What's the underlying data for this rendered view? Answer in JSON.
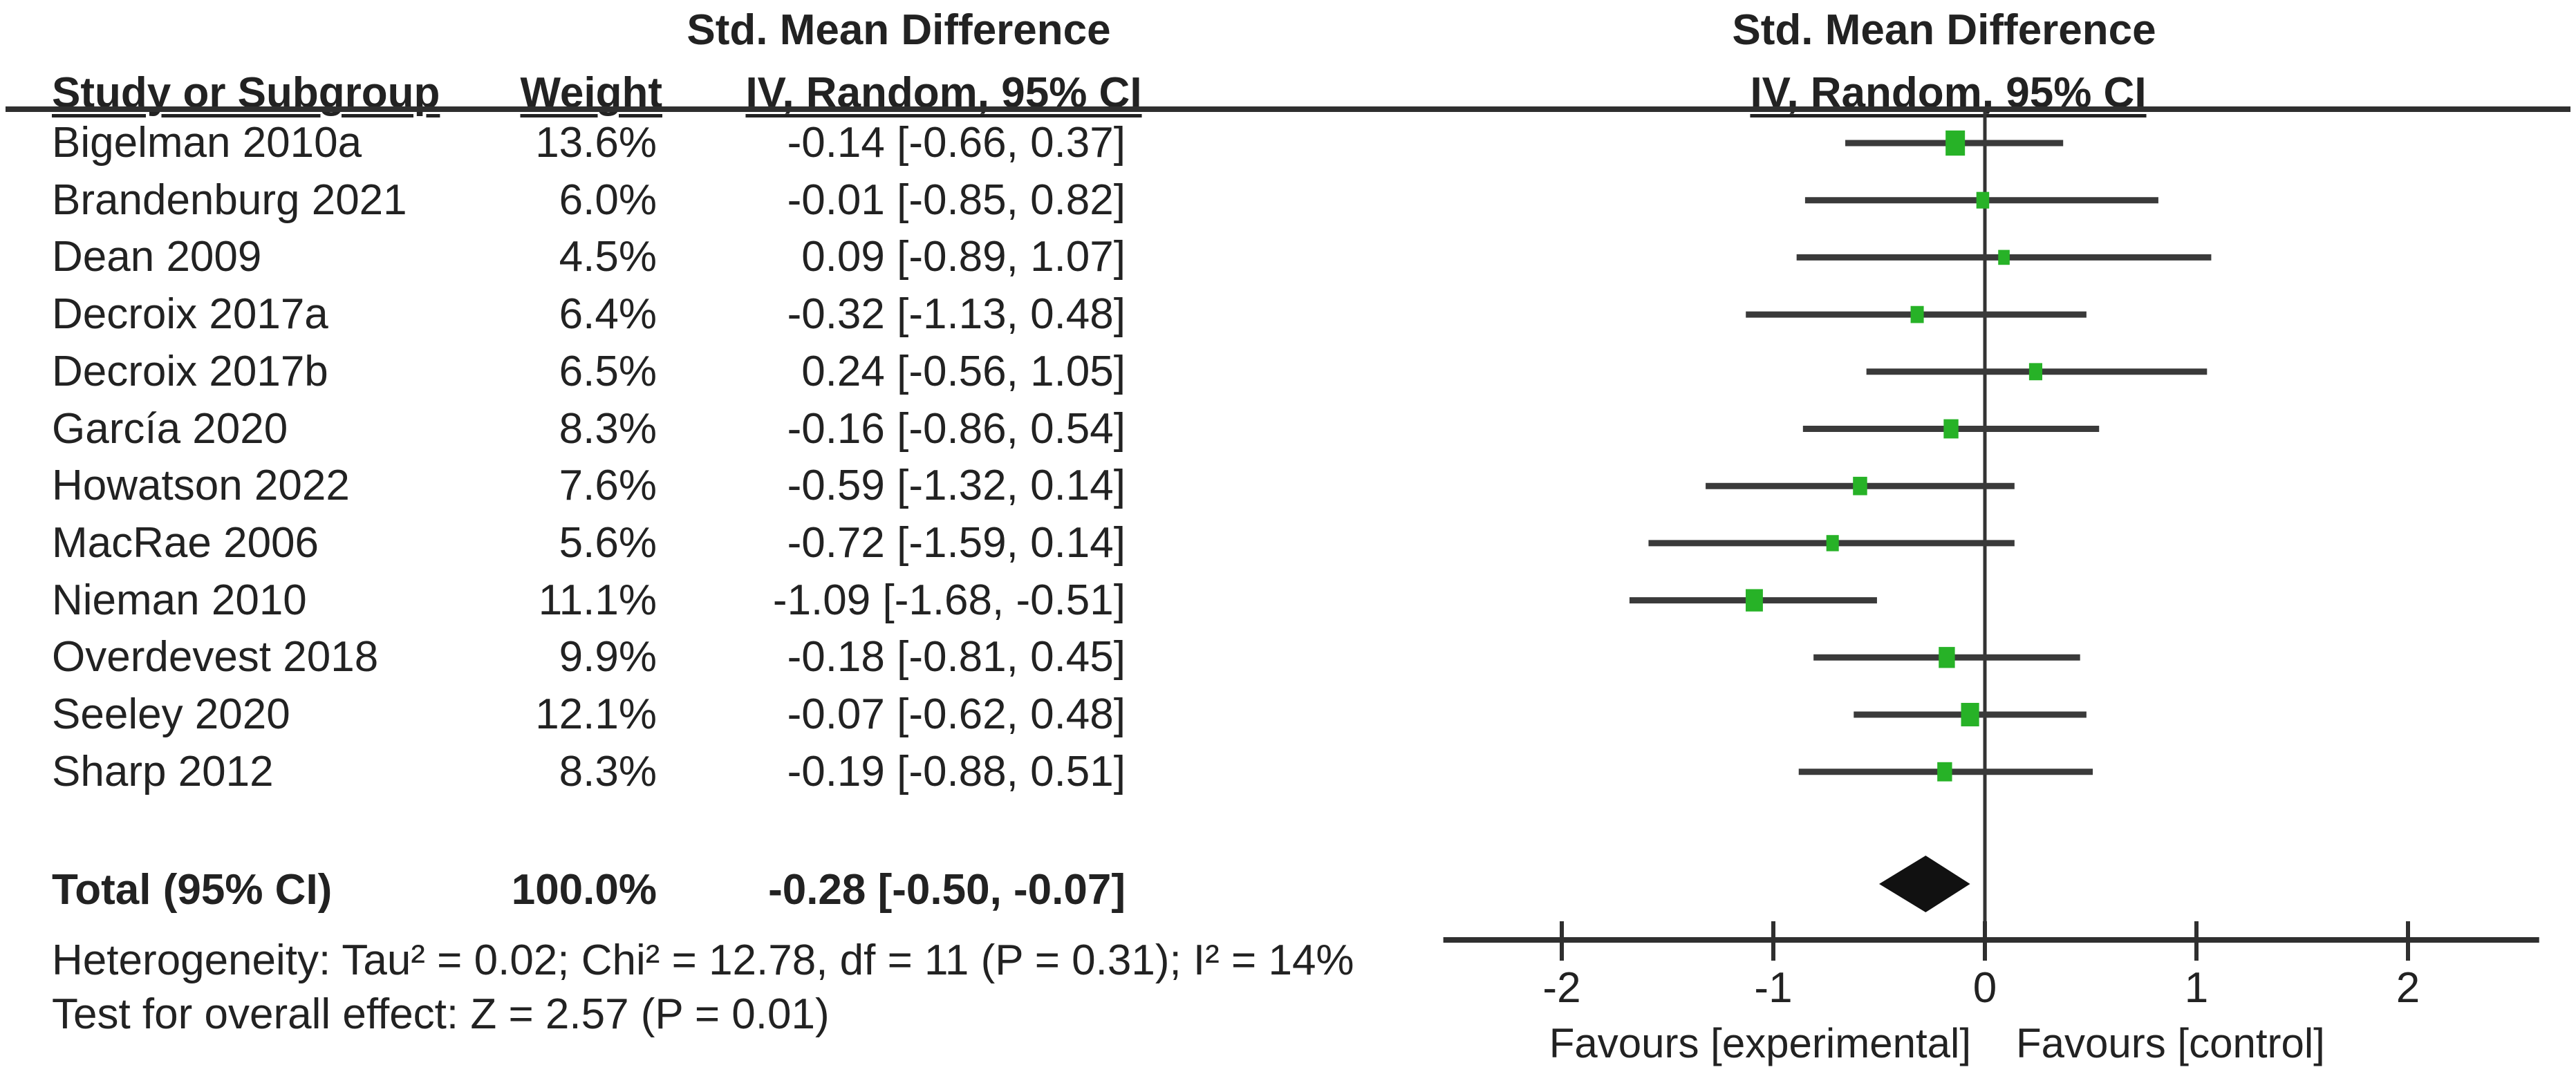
{
  "table": {
    "col_study_header": "Study or Subgroup",
    "col_weight_header": "Weight",
    "effect_col_header_line1": "Std. Mean Difference",
    "effect_col_header_line2": "IV, Random, 95% CI"
  },
  "plot": {
    "header_line1": "Std. Mean Difference",
    "header_line2": "IV, Random, 95% CI"
  },
  "chart_data": {
    "type": "forest",
    "title": "Std. Mean Difference — IV, Random, 95% CI",
    "effect_measure": "Std. Mean Difference",
    "model": "IV, Random, 95% CI",
    "xlim": [
      -2.56,
      2.62
    ],
    "x_ticks": [
      -2,
      -1,
      0,
      1,
      2
    ],
    "x_tick_labels": [
      "-2",
      "-1",
      "0",
      "1",
      "2"
    ],
    "axis_labels": {
      "left": "Favours [experimental]",
      "right": "Favours [control]"
    },
    "studies": [
      {
        "name": "Bigelman 2010a",
        "weight": "13.6%",
        "weight_pct": 13.6,
        "ci_text": "-0.14 [-0.66, 0.37]",
        "value": -0.14,
        "low": -0.66,
        "high": 0.37
      },
      {
        "name": "Brandenburg 2021",
        "weight": "6.0%",
        "weight_pct": 6.0,
        "ci_text": "-0.01 [-0.85, 0.82]",
        "value": -0.01,
        "low": -0.85,
        "high": 0.82
      },
      {
        "name": "Dean 2009",
        "weight": "4.5%",
        "weight_pct": 4.5,
        "ci_text": "0.09 [-0.89, 1.07]",
        "value": 0.09,
        "low": -0.89,
        "high": 1.07
      },
      {
        "name": "Decroix 2017a",
        "weight": "6.4%",
        "weight_pct": 6.4,
        "ci_text": "-0.32 [-1.13, 0.48]",
        "value": -0.32,
        "low": -1.13,
        "high": 0.48
      },
      {
        "name": "Decroix 2017b",
        "weight": "6.5%",
        "weight_pct": 6.5,
        "ci_text": "0.24 [-0.56, 1.05]",
        "value": 0.24,
        "low": -0.56,
        "high": 1.05
      },
      {
        "name": "García 2020",
        "weight": "8.3%",
        "weight_pct": 8.3,
        "ci_text": "-0.16 [-0.86, 0.54]",
        "value": -0.16,
        "low": -0.86,
        "high": 0.54
      },
      {
        "name": "Howatson 2022",
        "weight": "7.6%",
        "weight_pct": 7.6,
        "ci_text": "-0.59 [-1.32, 0.14]",
        "value": -0.59,
        "low": -1.32,
        "high": 0.14
      },
      {
        "name": "MacRae 2006",
        "weight": "5.6%",
        "weight_pct": 5.6,
        "ci_text": "-0.72 [-1.59, 0.14]",
        "value": -0.72,
        "low": -1.59,
        "high": 0.14
      },
      {
        "name": "Nieman 2010",
        "weight": "11.1%",
        "weight_pct": 11.1,
        "ci_text": "-1.09 [-1.68, -0.51]",
        "value": -1.09,
        "low": -1.68,
        "high": -0.51
      },
      {
        "name": "Overdevest 2018",
        "weight": "9.9%",
        "weight_pct": 9.9,
        "ci_text": "-0.18 [-0.81, 0.45]",
        "value": -0.18,
        "low": -0.81,
        "high": 0.45
      },
      {
        "name": "Seeley 2020",
        "weight": "12.1%",
        "weight_pct": 12.1,
        "ci_text": "-0.07 [-0.62, 0.48]",
        "value": -0.07,
        "low": -0.62,
        "high": 0.48
      },
      {
        "name": "Sharp 2012",
        "weight": "8.3%",
        "weight_pct": 8.3,
        "ci_text": "-0.19 [-0.88, 0.51]",
        "value": -0.19,
        "low": -0.88,
        "high": 0.51
      }
    ],
    "total": {
      "label": "Total (95% CI)",
      "weight": "100.0%",
      "weight_pct": 100.0,
      "ci_text": "-0.28 [-0.50, -0.07]",
      "value": -0.28,
      "low": -0.5,
      "high": -0.07
    },
    "heterogeneity": "Heterogeneity: Tau² = 0.02; Chi² = 12.78, df = 11 (P = 0.31); I² = 14%",
    "overall_effect": "Test for overall effect: Z = 2.57 (P = 0.01)",
    "colors": {
      "marker_green": "#27b227",
      "line_dark": "#3a3a3a",
      "diamond_black": "#111111",
      "text": "#222222"
    },
    "grid": false,
    "legend": false
  }
}
